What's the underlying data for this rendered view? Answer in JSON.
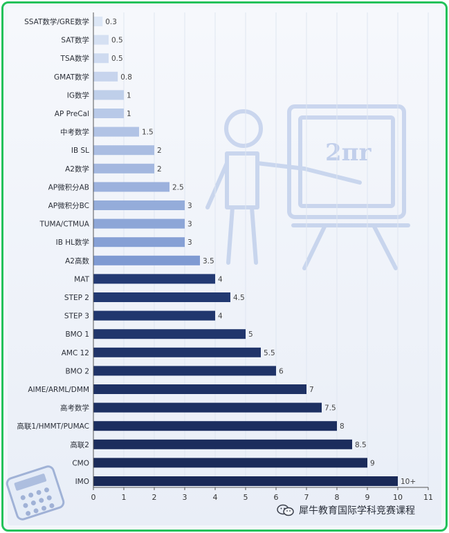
{
  "chart_data": {
    "type": "bar",
    "orientation": "horizontal",
    "title": "",
    "xlabel": "",
    "ylabel": "",
    "xlim": [
      0,
      11
    ],
    "x_ticks": [
      "0",
      "1",
      "2",
      "3",
      "4",
      "5",
      "6",
      "7",
      "8",
      "9",
      "10",
      "11"
    ],
    "grid": true,
    "colors": {
      "light_start": "#dce6f5",
      "light_end": "#7f9ad2",
      "dark_start": "#233a73",
      "dark_end": "#1a2a58"
    },
    "bars": [
      {
        "label": "SSAT数学/GRE数学",
        "value": 0.3,
        "value_label": "0.3",
        "group": "light"
      },
      {
        "label": "SAT数学",
        "value": 0.5,
        "value_label": "0.5",
        "group": "light"
      },
      {
        "label": "TSA数学",
        "value": 0.5,
        "value_label": "0.5",
        "group": "light"
      },
      {
        "label": "GMAT数学",
        "value": 0.8,
        "value_label": "0.8",
        "group": "light"
      },
      {
        "label": "IG数学",
        "value": 1,
        "value_label": "1",
        "group": "light"
      },
      {
        "label": "AP PreCal",
        "value": 1,
        "value_label": "1",
        "group": "light"
      },
      {
        "label": "中考数学",
        "value": 1.5,
        "value_label": "1.5",
        "group": "light"
      },
      {
        "label": "IB SL",
        "value": 2,
        "value_label": "2",
        "group": "light"
      },
      {
        "label": "A2数学",
        "value": 2,
        "value_label": "2",
        "group": "light"
      },
      {
        "label": "AP微积分AB",
        "value": 2.5,
        "value_label": "2.5",
        "group": "light"
      },
      {
        "label": "AP微积分BC",
        "value": 3,
        "value_label": "3",
        "group": "light"
      },
      {
        "label": "TUMA/CTMUA",
        "value": 3,
        "value_label": "3",
        "group": "light"
      },
      {
        "label": "IB HL数学",
        "value": 3,
        "value_label": "3",
        "group": "light"
      },
      {
        "label": "A2高数",
        "value": 3.5,
        "value_label": "3.5",
        "group": "light"
      },
      {
        "label": "MAT",
        "value": 4,
        "value_label": "4",
        "group": "dark"
      },
      {
        "label": "STEP 2",
        "value": 4.5,
        "value_label": "4.5",
        "group": "dark"
      },
      {
        "label": "STEP 3",
        "value": 4,
        "value_label": "4",
        "group": "dark"
      },
      {
        "label": "BMO 1",
        "value": 5,
        "value_label": "5",
        "group": "dark"
      },
      {
        "label": "AMC 12",
        "value": 5.5,
        "value_label": "5.5",
        "group": "dark"
      },
      {
        "label": "BMO 2",
        "value": 6,
        "value_label": "6",
        "group": "dark"
      },
      {
        "label": "AIME/ARML/DMM",
        "value": 7,
        "value_label": "7",
        "group": "dark"
      },
      {
        "label": "高考数学",
        "value": 7.5,
        "value_label": "7.5",
        "group": "dark"
      },
      {
        "label": "高联1/HMMT/PUMAC",
        "value": 8,
        "value_label": "8",
        "group": "dark"
      },
      {
        "label": "高联2",
        "value": 8.5,
        "value_label": "8.5",
        "group": "dark"
      },
      {
        "label": "CMO",
        "value": 9,
        "value_label": "9",
        "group": "dark"
      },
      {
        "label": "IMO",
        "value": 10,
        "value_label": "10+",
        "group": "dark"
      }
    ]
  },
  "illustration": {
    "board_text": "2πr",
    "icons": [
      "teacher-icon",
      "easel-board-icon",
      "calculator-icon"
    ]
  },
  "footer": {
    "icon": "wechat-icon",
    "text": "犀牛教育国际学科竞赛课程"
  }
}
